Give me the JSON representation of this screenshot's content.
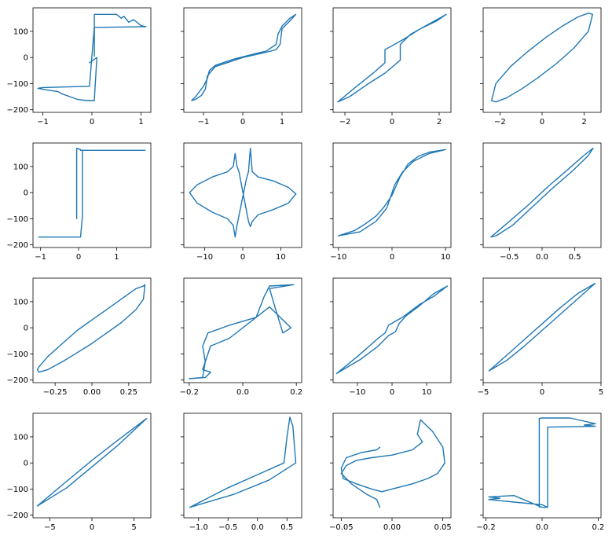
{
  "figure": {
    "grid": "4x4",
    "line_color": "#1f77b4",
    "sharey": true
  },
  "chart_data": [
    {
      "type": "line",
      "xlim": [
        -1.2,
        1.2
      ],
      "ylim": [
        -210,
        190
      ],
      "xticks": [
        {
          "v": -1,
          "label": "−1"
        },
        {
          "v": 0,
          "label": "0"
        },
        {
          "v": 1,
          "label": "1"
        }
      ],
      "yticks": [
        {
          "v": -200,
          "label": "−200"
        },
        {
          "v": -100,
          "label": "−100"
        },
        {
          "v": 0,
          "label": "0"
        },
        {
          "v": 100,
          "label": "100"
        }
      ],
      "show_ytick_labels": true,
      "x": [
        0.05,
        0.05,
        0.5,
        0.6,
        0.65,
        0.75,
        0.85,
        1.0,
        1.1,
        0.05,
        0.05,
        -0.05,
        -1.0,
        -1.1,
        -0.9,
        -0.7,
        -0.6,
        -0.45,
        -0.3,
        -0.1,
        0.05,
        0.05,
        0.1,
        -0.05
      ],
      "y": [
        5,
        165,
        165,
        150,
        158,
        135,
        145,
        122,
        118,
        115,
        120,
        -110,
        -115,
        -118,
        -125,
        -130,
        -140,
        -150,
        -160,
        -165,
        -165,
        -160,
        0,
        -20
      ]
    },
    {
      "type": "line",
      "xlim": [
        -1.5,
        1.5
      ],
      "ylim": [
        -210,
        190
      ],
      "xticks": [
        {
          "v": -1,
          "label": "−1"
        },
        {
          "v": 0,
          "label": "0"
        },
        {
          "v": 1,
          "label": "1"
        }
      ],
      "yticks": [
        {
          "v": -200,
          "label": ""
        },
        {
          "v": -100,
          "label": ""
        },
        {
          "v": 0,
          "label": ""
        },
        {
          "v": 100,
          "label": ""
        }
      ],
      "show_ytick_labels": false,
      "x": [
        -1.3,
        -1.2,
        -1.0,
        -0.9,
        -0.85,
        -0.7,
        -0.5,
        -0.2,
        0.2,
        0.6,
        0.85,
        0.9,
        1.0,
        1.2,
        1.35,
        1.2,
        1.0,
        0.95,
        0.85,
        0.6,
        0.3,
        0.0,
        -0.3,
        -0.7,
        -0.9,
        -0.95,
        -1.05,
        -1.2,
        -1.3
      ],
      "y": [
        -165,
        -150,
        -110,
        -80,
        -50,
        -30,
        -20,
        -5,
        10,
        25,
        50,
        90,
        120,
        150,
        165,
        140,
        110,
        50,
        30,
        20,
        10,
        0,
        -15,
        -35,
        -70,
        -120,
        -145,
        -160,
        -165
      ]
    },
    {
      "type": "line",
      "xlim": [
        -2.5,
        2.5
      ],
      "ylim": [
        -210,
        190
      ],
      "xticks": [
        {
          "v": -2,
          "label": "−2"
        },
        {
          "v": 0,
          "label": "0"
        },
        {
          "v": 2,
          "label": "2"
        }
      ],
      "yticks": [
        {
          "v": -200,
          "label": ""
        },
        {
          "v": -100,
          "label": ""
        },
        {
          "v": 0,
          "label": ""
        },
        {
          "v": 100,
          "label": ""
        }
      ],
      "show_ytick_labels": false,
      "x": [
        -2.3,
        -1.5,
        -0.8,
        -0.3,
        -0.3,
        0.5,
        1.2,
        1.9,
        2.3,
        1.6,
        0.8,
        0.35,
        0.35,
        -0.3,
        -1.0,
        -1.8,
        -2.3
      ],
      "y": [
        -170,
        -110,
        -60,
        -20,
        30,
        70,
        110,
        140,
        165,
        130,
        90,
        50,
        -10,
        -60,
        -100,
        -150,
        -170
      ]
    },
    {
      "type": "line",
      "xlim": [
        -2.8,
        2.8
      ],
      "ylim": [
        -210,
        190
      ],
      "xticks": [
        {
          "v": -2,
          "label": "−2"
        },
        {
          "v": 0,
          "label": "0"
        },
        {
          "v": 2,
          "label": "2"
        }
      ],
      "yticks": [
        {
          "v": -200,
          "label": ""
        },
        {
          "v": -100,
          "label": ""
        },
        {
          "v": 0,
          "label": ""
        },
        {
          "v": 100,
          "label": ""
        }
      ],
      "show_ytick_labels": false,
      "x": [
        -2.4,
        -2.2,
        -1.5,
        -0.7,
        0.2,
        1.0,
        1.7,
        2.2,
        2.4,
        2.2,
        1.5,
        0.7,
        -0.2,
        -1.0,
        -1.7,
        -2.2,
        -2.4
      ],
      "y": [
        -165,
        -100,
        -35,
        22,
        78,
        122,
        155,
        170,
        165,
        100,
        35,
        -22,
        -78,
        -122,
        -155,
        -170,
        -165
      ]
    },
    {
      "type": "line",
      "xlim": [
        -1.2,
        1.9
      ],
      "ylim": [
        -210,
        190
      ],
      "xticks": [
        {
          "v": -1,
          "label": "−1"
        },
        {
          "v": 0,
          "label": "0"
        },
        {
          "v": 1,
          "label": "1"
        }
      ],
      "yticks": [
        {
          "v": -200,
          "label": "−200"
        },
        {
          "v": -100,
          "label": "−100"
        },
        {
          "v": 0,
          "label": "0"
        },
        {
          "v": 100,
          "label": "100"
        }
      ],
      "show_ytick_labels": true,
      "x": [
        -0.05,
        -0.05,
        0.05,
        0.05,
        1.75,
        0.1,
        0.1,
        0.05,
        0.05,
        -0.1,
        -1.0,
        -1.05,
        0.05,
        0.05
      ],
      "y": [
        -100,
        170,
        165,
        162,
        162,
        162,
        -90,
        -170,
        -170,
        -170,
        -170,
        -170,
        -170,
        -170
      ]
    },
    {
      "type": "line",
      "xlim": [
        -15.5,
        15.5
      ],
      "ylim": [
        -210,
        190
      ],
      "xticks": [
        {
          "v": -10,
          "label": "−10"
        },
        {
          "v": 0,
          "label": "0"
        },
        {
          "v": 10,
          "label": "10"
        }
      ],
      "yticks": [
        {
          "v": -200,
          "label": ""
        },
        {
          "v": -100,
          "label": ""
        },
        {
          "v": 0,
          "label": ""
        },
        {
          "v": 100,
          "label": ""
        }
      ],
      "show_ytick_labels": false,
      "x": [
        -14,
        -12,
        -8,
        -4,
        -2.5,
        -2.0,
        -1.5,
        1.0,
        1.5,
        2.0,
        2.5,
        4,
        8,
        12,
        14,
        12,
        8,
        4,
        2.5,
        2.0,
        1.5,
        -1.0,
        -1.5,
        -2.0,
        -2.5,
        -4,
        -8,
        -12,
        -14
      ],
      "y": [
        0,
        -40,
        -75,
        -100,
        -125,
        -170,
        -125,
        55,
        80,
        170,
        80,
        60,
        45,
        20,
        -5,
        -40,
        -65,
        -85,
        -110,
        -130,
        -110,
        80,
        100,
        150,
        100,
        80,
        60,
        30,
        0
      ]
    },
    {
      "type": "line",
      "xlim": [
        -11,
        11
      ],
      "ylim": [
        -210,
        190
      ],
      "xticks": [
        {
          "v": -10,
          "label": "−10"
        },
        {
          "v": 0,
          "label": "0"
        },
        {
          "v": 10,
          "label": "10"
        }
      ],
      "yticks": [
        {
          "v": -200,
          "label": ""
        },
        {
          "v": -100,
          "label": ""
        },
        {
          "v": 0,
          "label": ""
        },
        {
          "v": 100,
          "label": ""
        }
      ],
      "show_ytick_labels": false,
      "x": [
        -10,
        -7,
        -5,
        -3,
        -1.5,
        0,
        1.5,
        3,
        5,
        7,
        10,
        7,
        4,
        2,
        0.5,
        -1,
        -3,
        -6,
        -10
      ],
      "y": [
        -165,
        -145,
        -120,
        -90,
        -55,
        -10,
        60,
        110,
        140,
        155,
        165,
        150,
        120,
        80,
        30,
        -60,
        -110,
        -150,
        -165
      ]
    },
    {
      "type": "line",
      "xlim": [
        -0.9,
        0.9
      ],
      "ylim": [
        -210,
        190
      ],
      "xticks": [
        {
          "v": -0.5,
          "label": "−0.5"
        },
        {
          "v": 0,
          "label": "0.0"
        },
        {
          "v": 0.5,
          "label": "0.5"
        }
      ],
      "yticks": [
        {
          "v": -200,
          "label": ""
        },
        {
          "v": -100,
          "label": ""
        },
        {
          "v": 0,
          "label": ""
        },
        {
          "v": 100,
          "label": ""
        }
      ],
      "show_ytick_labels": false,
      "x": [
        -0.78,
        -0.5,
        -0.2,
        0.1,
        0.4,
        0.65,
        0.78,
        0.7,
        0.45,
        0.15,
        -0.15,
        -0.45,
        -0.7,
        -0.78
      ],
      "y": [
        -170,
        -110,
        -45,
        25,
        90,
        145,
        170,
        140,
        80,
        15,
        -55,
        -125,
        -165,
        -170
      ]
    },
    {
      "type": "line",
      "xlim": [
        -0.4,
        0.4
      ],
      "ylim": [
        -210,
        190
      ],
      "xticks": [
        {
          "v": -0.25,
          "label": "−0.25"
        },
        {
          "v": 0,
          "label": "0.00"
        },
        {
          "v": 0.25,
          "label": "0.25"
        }
      ],
      "yticks": [
        {
          "v": -200,
          "label": "−200"
        },
        {
          "v": -100,
          "label": "−100"
        },
        {
          "v": 0,
          "label": "0"
        },
        {
          "v": 100,
          "label": "100"
        }
      ],
      "show_ytick_labels": true,
      "x": [
        -0.37,
        -0.36,
        -0.3,
        -0.2,
        -0.1,
        0,
        0.1,
        0.2,
        0.3,
        0.35,
        0.36,
        0.35,
        0.3,
        0.2,
        0.1,
        0,
        -0.1,
        -0.2,
        -0.3,
        -0.36,
        -0.37
      ],
      "y": [
        -160,
        -170,
        -160,
        -130,
        -95,
        -60,
        -20,
        20,
        70,
        110,
        165,
        160,
        150,
        110,
        70,
        30,
        -10,
        -60,
        -110,
        -150,
        -160
      ]
    },
    {
      "type": "line",
      "xlim": [
        -0.22,
        0.22
      ],
      "ylim": [
        -210,
        190
      ],
      "xticks": [
        {
          "v": -0.2,
          "label": "−0.2"
        },
        {
          "v": 0,
          "label": "0.0"
        },
        {
          "v": 0.2,
          "label": "0.2"
        }
      ],
      "yticks": [
        {
          "v": -200,
          "label": ""
        },
        {
          "v": -100,
          "label": ""
        },
        {
          "v": 0,
          "label": ""
        },
        {
          "v": 100,
          "label": ""
        }
      ],
      "show_ytick_labels": false,
      "x": [
        -0.2,
        -0.15,
        -0.14,
        -0.15,
        -0.13,
        -0.05,
        0.05,
        0.1,
        0.18,
        0.15,
        0.12,
        0.1,
        0.19,
        0.1,
        0.08,
        0.05,
        -0.05,
        -0.12,
        -0.15,
        -0.12,
        -0.14,
        -0.2
      ],
      "y": [
        -195,
        -190,
        -130,
        -70,
        -20,
        10,
        40,
        80,
        0,
        -20,
        80,
        150,
        165,
        160,
        120,
        40,
        -40,
        -70,
        -160,
        -170,
        -190,
        -195
      ]
    },
    {
      "type": "line",
      "xlim": [
        -17,
        17
      ],
      "ylim": [
        -210,
        190
      ],
      "xticks": [
        {
          "v": -10,
          "label": "−10"
        },
        {
          "v": 0,
          "label": "0"
        },
        {
          "v": 10,
          "label": "10"
        }
      ],
      "yticks": [
        {
          "v": -200,
          "label": ""
        },
        {
          "v": -100,
          "label": ""
        },
        {
          "v": 0,
          "label": ""
        },
        {
          "v": 100,
          "label": ""
        }
      ],
      "show_ytick_labels": false,
      "x": [
        -16,
        -10,
        -4,
        -2,
        -1,
        1,
        3,
        8,
        12,
        16,
        12,
        8,
        4,
        2,
        1,
        -1,
        -4,
        -9,
        -16
      ],
      "y": [
        -175,
        -110,
        -40,
        -20,
        10,
        25,
        40,
        90,
        120,
        160,
        130,
        85,
        45,
        15,
        -15,
        -30,
        -70,
        -120,
        -175
      ]
    },
    {
      "type": "line",
      "xlim": [
        -5,
        5
      ],
      "ylim": [
        -210,
        190
      ],
      "xticks": [
        {
          "v": -5,
          "label": "−5"
        },
        {
          "v": 0,
          "label": "0"
        },
        {
          "v": 5,
          "label": "5"
        }
      ],
      "yticks": [
        {
          "v": -200,
          "label": ""
        },
        {
          "v": -100,
          "label": ""
        },
        {
          "v": 0,
          "label": ""
        },
        {
          "v": 100,
          "label": ""
        }
      ],
      "show_ytick_labels": false,
      "x": [
        -4.5,
        -3,
        -1.5,
        0,
        1.5,
        3,
        4.5,
        3,
        1.5,
        0,
        -1.5,
        -3,
        -4.5
      ],
      "y": [
        -165,
        -105,
        -45,
        15,
        75,
        130,
        170,
        110,
        50,
        -10,
        -70,
        -125,
        -165
      ]
    },
    {
      "type": "line",
      "xlim": [
        -7,
        7
      ],
      "ylim": [
        -210,
        190
      ],
      "xticks": [
        {
          "v": -5,
          "label": "−5"
        },
        {
          "v": 0,
          "label": "0"
        },
        {
          "v": 5,
          "label": "5"
        }
      ],
      "yticks": [
        {
          "v": -200,
          "label": "−200"
        },
        {
          "v": -100,
          "label": "−100"
        },
        {
          "v": 0,
          "label": "0"
        },
        {
          "v": 100,
          "label": "100"
        }
      ],
      "show_ytick_labels": true,
      "x": [
        -6.5,
        -3,
        0,
        3,
        6.5,
        3,
        0,
        -3,
        -6.5
      ],
      "y": [
        -165,
        -70,
        10,
        85,
        170,
        65,
        -15,
        -95,
        -165
      ]
    },
    {
      "type": "line",
      "xlim": [
        -1.25,
        0.75
      ],
      "ylim": [
        -210,
        190
      ],
      "xticks": [
        {
          "v": -1,
          "label": "−1.0"
        },
        {
          "v": -0.5,
          "label": "−0.5"
        },
        {
          "v": 0,
          "label": "0.0"
        },
        {
          "v": 0.5,
          "label": "0.5"
        }
      ],
      "yticks": [
        {
          "v": -200,
          "label": ""
        },
        {
          "v": -100,
          "label": ""
        },
        {
          "v": 0,
          "label": ""
        },
        {
          "v": 100,
          "label": ""
        }
      ],
      "show_ytick_labels": false,
      "x": [
        -1.15,
        -0.5,
        0.0,
        0.45,
        0.5,
        0.55,
        0.6,
        0.65,
        0.2,
        -0.4,
        -1.15
      ],
      "y": [
        -170,
        -95,
        -45,
        0,
        100,
        175,
        140,
        0,
        -65,
        -120,
        -170
      ]
    },
    {
      "type": "line",
      "xlim": [
        -0.058,
        0.058
      ],
      "ylim": [
        -210,
        190
      ],
      "xticks": [
        {
          "v": -0.05,
          "label": "−0.05"
        },
        {
          "v": 0,
          "label": "0.00"
        },
        {
          "v": 0.05,
          "label": "0.05"
        }
      ],
      "yticks": [
        {
          "v": -200,
          "label": ""
        },
        {
          "v": -100,
          "label": ""
        },
        {
          "v": 0,
          "label": ""
        },
        {
          "v": 100,
          "label": ""
        }
      ],
      "show_ytick_labels": false,
      "x": [
        -0.012,
        -0.015,
        -0.025,
        -0.04,
        -0.05,
        -0.045,
        -0.035,
        -0.02,
        0.0,
        0.02,
        0.03,
        0.025,
        0.028,
        0.04,
        0.05,
        0.052,
        0.045,
        0.035,
        0.02,
        0.0,
        -0.01,
        -0.02,
        -0.035,
        -0.048,
        -0.05,
        -0.045,
        -0.03,
        -0.015,
        -0.012
      ],
      "y": [
        -170,
        -140,
        -120,
        -80,
        -40,
        -10,
        10,
        20,
        30,
        50,
        80,
        110,
        165,
        120,
        60,
        0,
        -40,
        -60,
        -80,
        -100,
        -110,
        -100,
        -80,
        -60,
        -20,
        20,
        40,
        50,
        60
      ]
    },
    {
      "type": "line",
      "xlim": [
        -0.21,
        0.21
      ],
      "ylim": [
        -210,
        190
      ],
      "xticks": [
        {
          "v": -0.2,
          "label": "−0.2"
        },
        {
          "v": 0,
          "label": "0.0"
        },
        {
          "v": 0.2,
          "label": "0.2"
        }
      ],
      "yticks": [
        {
          "v": -200,
          "label": ""
        },
        {
          "v": -100,
          "label": ""
        },
        {
          "v": 0,
          "label": ""
        },
        {
          "v": 100,
          "label": ""
        }
      ],
      "show_ytick_labels": false,
      "x": [
        -0.01,
        -0.01,
        0.0,
        0.1,
        0.15,
        0.19,
        0.15,
        0.19,
        0.02,
        0.02,
        0.0,
        -0.1,
        -0.19,
        -0.15,
        -0.19,
        -0.1,
        0.0,
        0.02
      ],
      "y": [
        -170,
        170,
        172,
        172,
        160,
        150,
        145,
        140,
        137,
        -170,
        -160,
        -150,
        -140,
        -135,
        -130,
        -125,
        -170,
        -170
      ]
    }
  ]
}
